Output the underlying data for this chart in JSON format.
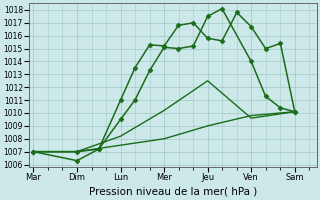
{
  "xlabel": "Pression niveau de la mer( hPa )",
  "x_labels": [
    "Mar",
    "Dim",
    "Lun",
    "Mer",
    "Jeu",
    "Ven",
    "Sam"
  ],
  "x_tick_pos": [
    0,
    1,
    2,
    3,
    4,
    5,
    6
  ],
  "xlim": [
    -0.1,
    6.5
  ],
  "ylim": [
    1005.8,
    1018.5
  ],
  "yticks": [
    1006,
    1007,
    1008,
    1009,
    1010,
    1011,
    1012,
    1013,
    1014,
    1015,
    1016,
    1017,
    1018
  ],
  "background_color": "#cde8e8",
  "grid_color": "#a0c8c8",
  "line_color": "#1a6b1a",
  "lines": [
    {
      "x": [
        0.0,
        1.0,
        1.5,
        2.0,
        2.33,
        2.67,
        3.0,
        3.33,
        3.67,
        4.0,
        4.33,
        4.67,
        5.0,
        5.33,
        5.67,
        6.0
      ],
      "y": [
        1007.0,
        1006.3,
        1007.2,
        1011.0,
        1013.5,
        1015.3,
        1015.2,
        1016.8,
        1017.0,
        1015.8,
        1015.6,
        1017.8,
        1016.7,
        1015.0,
        1015.4,
        1010.1
      ],
      "marker": "D",
      "markersize": 2.5,
      "linewidth": 1.1
    },
    {
      "x": [
        0.0,
        1.0,
        1.5,
        2.0,
        2.33,
        2.67,
        3.0,
        3.33,
        3.67,
        4.0,
        4.33,
        5.0,
        5.33,
        5.67,
        6.0
      ],
      "y": [
        1007.0,
        1007.0,
        1007.2,
        1009.5,
        1011.0,
        1013.3,
        1015.1,
        1015.0,
        1015.2,
        1017.5,
        1018.1,
        1014.0,
        1011.3,
        1010.4,
        1010.1
      ],
      "marker": "D",
      "markersize": 2.5,
      "linewidth": 1.1
    },
    {
      "x": [
        0.0,
        1.0,
        2.0,
        3.0,
        4.0,
        5.0,
        6.0
      ],
      "y": [
        1007.0,
        1007.0,
        1008.2,
        1010.2,
        1012.5,
        1009.6,
        1010.1
      ],
      "marker": null,
      "markersize": 0,
      "linewidth": 1.0
    },
    {
      "x": [
        0.0,
        1.0,
        2.0,
        3.0,
        4.0,
        5.0,
        6.0
      ],
      "y": [
        1007.0,
        1007.0,
        1007.5,
        1008.0,
        1009.0,
        1009.8,
        1010.1
      ],
      "marker": null,
      "markersize": 0,
      "linewidth": 1.0
    }
  ]
}
